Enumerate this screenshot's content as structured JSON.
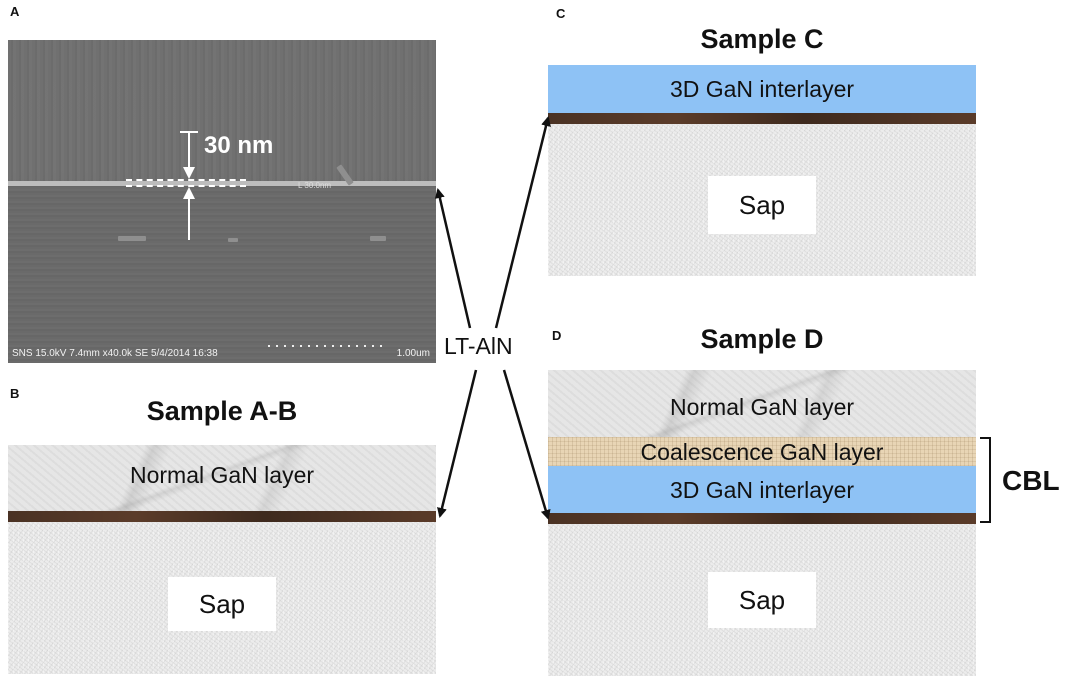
{
  "panels": {
    "a": {
      "letter": "A"
    },
    "b": {
      "letter": "B",
      "title": "Sample A-B"
    },
    "c": {
      "letter": "C",
      "title": "Sample C"
    },
    "d": {
      "letter": "D",
      "title": "Sample D"
    }
  },
  "sem": {
    "info": "SNS 15.0kV 7.4mm x40.0k SE  5/4/2014 16:38",
    "scale": "1.00um",
    "thickness": "30 nm",
    "measure_tag": "L 30.0nm"
  },
  "layers": {
    "normal_gan": "Normal GaN layer",
    "coalescence_gan": "Coalescence GaN layer",
    "gan_3d": "3D GaN interlayer",
    "sapphire": "Sap"
  },
  "annotations": {
    "lt_aln": "LT-AlN",
    "cbl": "CBL"
  },
  "colors": {
    "gan_3d": "#8ec2f5",
    "aln": "#4a3224",
    "coalescence": "#e8d5b5"
  }
}
